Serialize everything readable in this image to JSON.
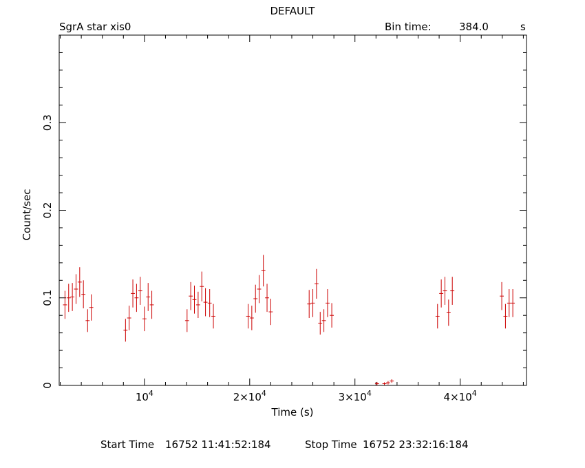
{
  "chart_data": {
    "type": "scatter",
    "title": "DEFAULT",
    "subtitle": "SgrA star xis0",
    "bin_time": {
      "label": "Bin time:",
      "value": "384.0",
      "unit": "s"
    },
    "xlabel": "Time (s)",
    "ylabel": "Count/sec",
    "xlim": [
      1900,
      46300
    ],
    "ylim": [
      0,
      0.4
    ],
    "x_ticks": [
      {
        "value": 10000,
        "mant": "",
        "exp": "4"
      },
      {
        "value": 20000,
        "mant": "2×",
        "exp": "4"
      },
      {
        "value": 30000,
        "mant": "3×",
        "exp": "4"
      },
      {
        "value": 40000,
        "mant": "4×",
        "exp": "4"
      }
    ],
    "y_ticks": [
      {
        "value": 0,
        "label": "0"
      },
      {
        "value": 0.1,
        "label": "0.1"
      },
      {
        "value": 0.2,
        "label": "0.2"
      },
      {
        "value": 0.3,
        "label": "0.3"
      }
    ],
    "footer": {
      "start_label": "Start Time",
      "start_value": "16752  11:41:52:184",
      "stop_label": "Stop Time",
      "stop_value": "16752  23:32:16:184"
    },
    "series": [
      {
        "color": "#cc0000",
        "xerr": 192,
        "points": [
          [
            2450,
            0.092,
            0.016
          ],
          [
            2800,
            0.1,
            0.016
          ],
          [
            3150,
            0.101,
            0.016
          ],
          [
            3500,
            0.11,
            0.017
          ],
          [
            3850,
            0.118,
            0.017
          ],
          [
            4200,
            0.104,
            0.016
          ],
          [
            4600,
            0.074,
            0.013
          ],
          [
            4950,
            0.089,
            0.015
          ],
          [
            8200,
            0.063,
            0.013
          ],
          [
            8550,
            0.077,
            0.014
          ],
          [
            8900,
            0.105,
            0.016
          ],
          [
            9250,
            0.1,
            0.016
          ],
          [
            9600,
            0.108,
            0.016
          ],
          [
            10000,
            0.076,
            0.014
          ],
          [
            10350,
            0.101,
            0.016
          ],
          [
            10700,
            0.092,
            0.016
          ],
          [
            14050,
            0.074,
            0.013
          ],
          [
            14400,
            0.102,
            0.016
          ],
          [
            14750,
            0.098,
            0.016
          ],
          [
            15100,
            0.092,
            0.015
          ],
          [
            15450,
            0.113,
            0.017
          ],
          [
            15800,
            0.095,
            0.016
          ],
          [
            16200,
            0.094,
            0.016
          ],
          [
            16550,
            0.079,
            0.014
          ],
          [
            19850,
            0.079,
            0.014
          ],
          [
            20200,
            0.077,
            0.014
          ],
          [
            20550,
            0.099,
            0.016
          ],
          [
            20900,
            0.11,
            0.016
          ],
          [
            21300,
            0.131,
            0.018
          ],
          [
            21650,
            0.1,
            0.016
          ],
          [
            22000,
            0.084,
            0.015
          ],
          [
            25650,
            0.093,
            0.016
          ],
          [
            26000,
            0.094,
            0.016
          ],
          [
            26350,
            0.116,
            0.017
          ],
          [
            26700,
            0.071,
            0.013
          ],
          [
            27050,
            0.074,
            0.013
          ],
          [
            27400,
            0.094,
            0.016
          ],
          [
            27800,
            0.08,
            0.014
          ],
          [
            32100,
            0.002,
            0.002
          ],
          [
            32800,
            0.002,
            0.0015
          ],
          [
            33150,
            0.003,
            0.002
          ],
          [
            33500,
            0.005,
            0.002
          ],
          [
            37850,
            0.079,
            0.014
          ],
          [
            38200,
            0.105,
            0.016
          ],
          [
            38550,
            0.108,
            0.016
          ],
          [
            38900,
            0.083,
            0.015
          ],
          [
            39250,
            0.108,
            0.016
          ],
          [
            43950,
            0.102,
            0.016
          ],
          [
            44300,
            0.079,
            0.014
          ],
          [
            44650,
            0.094,
            0.016
          ],
          [
            45000,
            0.094,
            0.016
          ]
        ]
      }
    ]
  }
}
